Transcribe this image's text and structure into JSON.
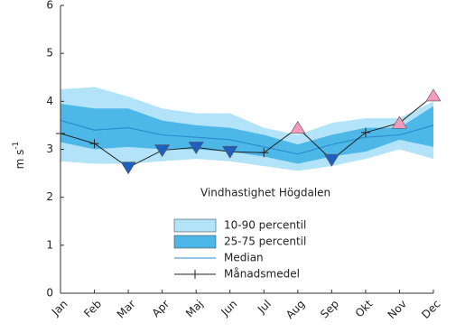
{
  "chart_data": {
    "type": "band-line",
    "annotation": "Vindhastighet Högdalen",
    "y_label": "m s",
    "y_label_sup": "-1",
    "categories": [
      "Jan",
      "Feb",
      "Mar",
      "Apr",
      "Maj",
      "Jun",
      "Jul",
      "Aug",
      "Sep",
      "Okt",
      "Nov",
      "Dec"
    ],
    "ylim": [
      0,
      6
    ],
    "yticks": [
      0,
      1,
      2,
      3,
      4,
      5,
      6
    ],
    "bands": [
      {
        "name": "10-90 percentil",
        "color": "#b3e3f8",
        "values": [
          4.25,
          4.3,
          4.1,
          3.85,
          3.75,
          3.75,
          3.45,
          3.3,
          3.55,
          3.65,
          3.65,
          4.0
        ],
        "lower": [
          2.75,
          2.7,
          2.7,
          2.75,
          2.8,
          2.75,
          2.65,
          2.55,
          2.65,
          2.8,
          3.0,
          2.8
        ]
      },
      {
        "name": "25-75 percentil",
        "color": "#4db8e8",
        "values": [
          3.95,
          3.85,
          3.85,
          3.6,
          3.5,
          3.45,
          3.3,
          3.1,
          3.3,
          3.45,
          3.45,
          3.9
        ],
        "lower": [
          3.15,
          3.0,
          3.05,
          3.0,
          3.0,
          2.95,
          2.85,
          2.7,
          2.85,
          2.95,
          3.2,
          3.05
        ]
      }
    ],
    "series": [
      {
        "name": "Median",
        "color": "#2a8ccf",
        "values": [
          3.6,
          3.4,
          3.45,
          3.3,
          3.25,
          3.2,
          3.05,
          2.9,
          3.1,
          3.25,
          3.3,
          3.5
        ]
      },
      {
        "name": "Månadsmedel",
        "color": "#222222",
        "values": [
          3.33,
          3.12,
          2.62,
          2.98,
          3.04,
          2.95,
          2.93,
          3.45,
          2.78,
          3.35,
          3.55,
          4.12
        ],
        "markers": [
          null,
          null,
          "down",
          "down",
          "down",
          "down",
          null,
          "up",
          "down",
          null,
          "up",
          "up"
        ],
        "marker_colors": {
          "down": "#1f5fbf",
          "up": "#f29bbd"
        }
      }
    ]
  }
}
